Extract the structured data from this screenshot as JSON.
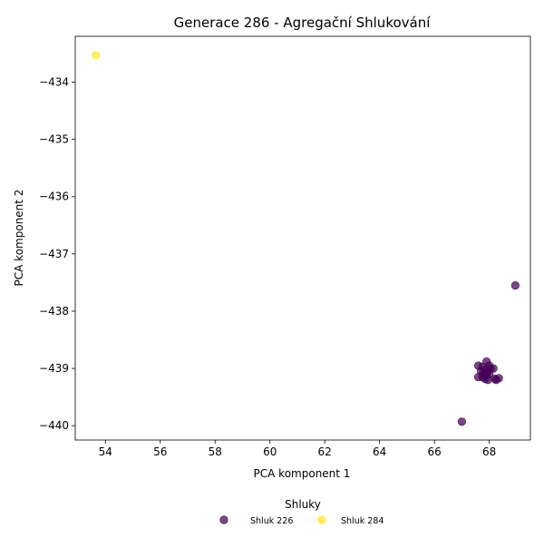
{
  "chart_data": {
    "type": "scatter",
    "title": "Generace 286 - Agregační Shlukování",
    "xlabel": "PCA komponent 1",
    "ylabel": "PCA komponent 2",
    "xlim": [
      52.9,
      69.5
    ],
    "ylim": [
      -440.25,
      -433.2
    ],
    "x_ticks": [
      54,
      56,
      58,
      60,
      62,
      64,
      66,
      68
    ],
    "x_tick_labels": [
      "54",
      "56",
      "58",
      "60",
      "62",
      "64",
      "66",
      "68"
    ],
    "y_ticks": [
      -434,
      -435,
      -436,
      -437,
      -438,
      -439,
      -440
    ],
    "y_tick_labels": [
      "−434",
      "−435",
      "−436",
      "−437",
      "−438",
      "−439",
      "−440"
    ],
    "grid": false,
    "legend_title": "Shluky",
    "legend_position": "bottom-center",
    "series": [
      {
        "name": "Shluk 226",
        "color": "#440154",
        "points": [
          [
            68.95,
            -437.55
          ],
          [
            67.0,
            -439.93
          ],
          [
            67.6,
            -438.95
          ],
          [
            67.75,
            -438.97
          ],
          [
            67.9,
            -438.88
          ],
          [
            68.0,
            -438.95
          ],
          [
            67.7,
            -439.05
          ],
          [
            67.85,
            -439.02
          ],
          [
            67.95,
            -439.05
          ],
          [
            68.05,
            -439.0
          ],
          [
            68.15,
            -439.0
          ],
          [
            67.8,
            -439.1
          ],
          [
            67.9,
            -439.12
          ],
          [
            68.0,
            -439.1
          ],
          [
            67.75,
            -439.15
          ],
          [
            67.6,
            -439.15
          ],
          [
            67.85,
            -439.18
          ],
          [
            68.2,
            -439.18
          ],
          [
            68.35,
            -439.17
          ],
          [
            68.25,
            -439.2
          ],
          [
            67.95,
            -439.2
          ],
          [
            67.8,
            -439.08
          ]
        ]
      },
      {
        "name": "Shluk 284",
        "color": "#fde725",
        "points": [
          [
            53.65,
            -433.53
          ]
        ]
      }
    ]
  }
}
